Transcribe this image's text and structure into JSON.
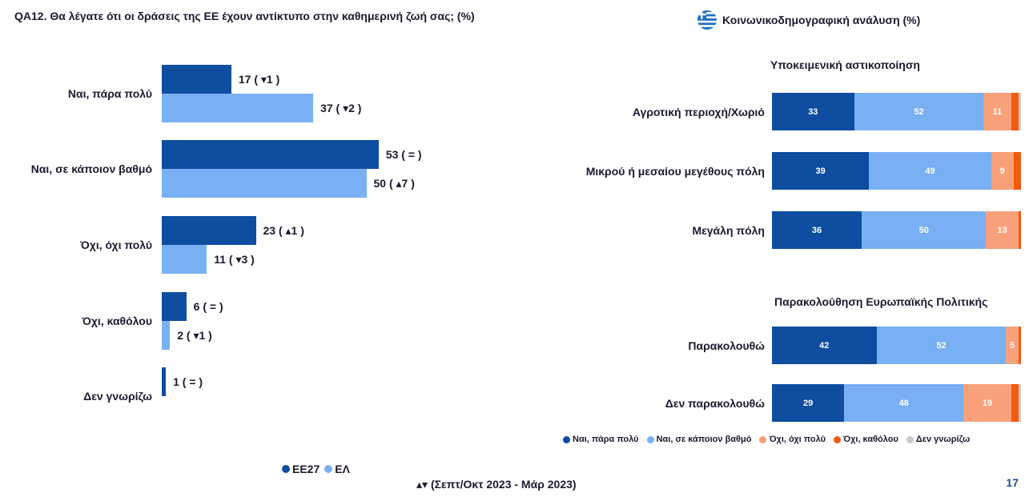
{
  "question": "QA12. Θα λέγατε ότι οι δράσεις της ΕΕ έχουν αντίκτυπο στην καθημερινή ζωή σας; (%)",
  "right_title": "Κοινωνικοδημογραφική ανάλυση (%)",
  "flag_icon": "greek-flag-icon",
  "colors": {
    "eu27": "#0e4da0",
    "gr": "#79b0f3",
    "c1": "#0e4da0",
    "c2": "#79b0f3",
    "c3": "#f8a07a",
    "c4": "#f25a0f",
    "c5": "#c8c8c8"
  },
  "chart_data": [
    {
      "type": "bar",
      "orientation": "horizontal",
      "categories": [
        "Ναι, πάρα πολύ",
        "Ναι, σε κάποιον βαθμό",
        "Όχι, όχι πολύ",
        "Όχι, καθόλου",
        "Δεν γνωρίζω"
      ],
      "series": [
        {
          "name": "ΕΕ27",
          "values": [
            17,
            53,
            23,
            6,
            1
          ],
          "labels": [
            "17 ( ▾1 )",
            "53 ( = )",
            "23 ( ▴1 )",
            "6 ( = )",
            "1 ( = )"
          ]
        },
        {
          "name": "ΕΛ",
          "values": [
            37,
            50,
            11,
            2,
            null
          ],
          "labels": [
            "37 ( ▾2 )",
            "50 ( ▴7 )",
            "11 ( ▾3 )",
            "2 ( ▾1 )",
            ""
          ]
        }
      ],
      "xlim": [
        0,
        100
      ]
    },
    {
      "type": "bar",
      "stacked": true,
      "orientation": "horizontal",
      "groups": [
        {
          "title": "Υποκειμενική αστικοποίηση",
          "rows": [
            {
              "label": "Αγροτική περιοχή/Χωριό",
              "values": [
                33,
                52,
                11,
                3,
                1
              ]
            },
            {
              "label": "Μικρού ή μεσαίου μεγέθους πόλη",
              "values": [
                39,
                49,
                9,
                3,
                0
              ]
            },
            {
              "label": "Μεγάλη πόλη",
              "values": [
                36,
                50,
                13,
                1,
                0
              ]
            }
          ]
        },
        {
          "title": "Παρακολούθηση Ευρωπαϊκής Πολιτικής",
          "rows": [
            {
              "label": "Παρακολουθώ",
              "values": [
                42,
                52,
                5,
                1,
                0
              ]
            },
            {
              "label": "Δεν παρακολουθώ",
              "values": [
                29,
                48,
                19,
                3,
                1
              ]
            }
          ]
        }
      ],
      "series_names": [
        "Ναι, πάρα πολύ",
        "Ναι, σε κάποιον βαθμό",
        "Όχι, όχι πολύ",
        "Όχι, καθόλου",
        "Δεν γνωρίζω"
      ]
    }
  ],
  "legend_left": [
    "ΕΕ27",
    "ΕΛ"
  ],
  "note": "▴▾ (Σεπτ/Οκτ 2023 - Μάρ 2023)",
  "page_number": "17"
}
